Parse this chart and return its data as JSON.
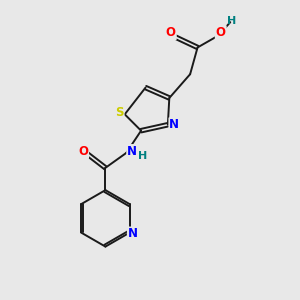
{
  "background_color": "#e8e8e8",
  "bond_color": "#1a1a1a",
  "atom_colors": {
    "O": "#ff0000",
    "N": "#0000ff",
    "S": "#cccc00",
    "H": "#008080",
    "C": "#1a1a1a"
  },
  "fig_width": 3.0,
  "fig_height": 3.0,
  "dpi": 100,
  "lw": 1.4,
  "fs": 8.5
}
